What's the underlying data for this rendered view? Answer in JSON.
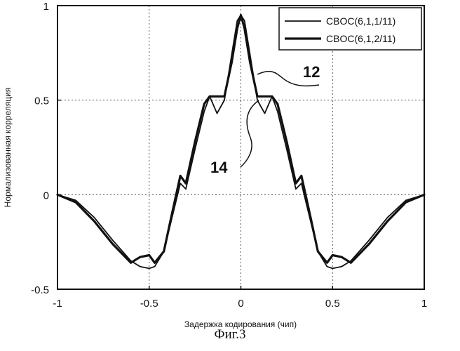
{
  "chart_data": {
    "type": "line",
    "xlabel": "Задержка кодирования (чип)",
    "ylabel": "Нормализованная корреляция",
    "xlim": [
      -1,
      1
    ],
    "ylim": [
      -0.5,
      1
    ],
    "x_ticks": [
      -1,
      -0.5,
      0,
      0.5,
      1
    ],
    "x_tick_labels": [
      "-1",
      "-0.5",
      "0",
      "0.5",
      "1"
    ],
    "y_ticks": [
      -0.5,
      0,
      0.5,
      1
    ],
    "y_tick_labels": [
      "-0.5",
      "0",
      "0.5",
      "1"
    ],
    "grid": true,
    "legend_position": "top-right",
    "series": [
      {
        "name": "CBOC(6,1,1/11)",
        "x": [
          -1,
          -0.9,
          -0.8,
          -0.7,
          -0.6,
          -0.55,
          -0.5,
          -0.47,
          -0.42,
          -0.38,
          -0.33,
          -0.3,
          -0.25,
          -0.2,
          -0.17,
          -0.13,
          -0.09,
          -0.05,
          -0.02,
          0,
          0.02,
          0.05,
          0.09,
          0.13,
          0.17,
          0.2,
          0.25,
          0.3,
          0.33,
          0.38,
          0.42,
          0.47,
          0.5,
          0.55,
          0.6,
          0.7,
          0.8,
          0.9,
          1
        ],
        "y": [
          0,
          -0.03,
          -0.12,
          -0.24,
          -0.35,
          -0.38,
          -0.39,
          -0.38,
          -0.3,
          -0.14,
          0.06,
          0.03,
          0.24,
          0.44,
          0.52,
          0.43,
          0.5,
          0.74,
          0.92,
          0.95,
          0.92,
          0.74,
          0.5,
          0.43,
          0.52,
          0.44,
          0.24,
          0.03,
          0.06,
          -0.14,
          -0.3,
          -0.38,
          -0.39,
          -0.38,
          -0.35,
          -0.24,
          -0.12,
          -0.03,
          0
        ]
      },
      {
        "name": "CBOC(6,1,2/11)",
        "x": [
          -1,
          -0.9,
          -0.8,
          -0.7,
          -0.6,
          -0.55,
          -0.5,
          -0.47,
          -0.42,
          -0.38,
          -0.33,
          -0.3,
          -0.25,
          -0.2,
          -0.17,
          -0.13,
          -0.09,
          -0.05,
          -0.02,
          0,
          0.02,
          0.05,
          0.09,
          0.13,
          0.17,
          0.2,
          0.25,
          0.3,
          0.33,
          0.38,
          0.42,
          0.47,
          0.5,
          0.55,
          0.6,
          0.7,
          0.8,
          0.9,
          1
        ],
        "y": [
          0,
          -0.04,
          -0.14,
          -0.26,
          -0.36,
          -0.33,
          -0.32,
          -0.36,
          -0.3,
          -0.12,
          0.1,
          0.06,
          0.28,
          0.48,
          0.52,
          0.52,
          0.52,
          0.7,
          0.88,
          0.95,
          0.88,
          0.7,
          0.52,
          0.52,
          0.52,
          0.48,
          0.28,
          0.06,
          0.1,
          -0.12,
          -0.3,
          -0.36,
          -0.32,
          -0.33,
          -0.36,
          -0.26,
          -0.14,
          -0.04,
          0
        ]
      }
    ],
    "annotations": [
      {
        "text": "12",
        "points_to_series": "CBOC(6,1,1/11)"
      },
      {
        "text": "14",
        "points_to_series": "CBOC(6,1,2/11)"
      }
    ]
  },
  "caption": "Фиг.3"
}
